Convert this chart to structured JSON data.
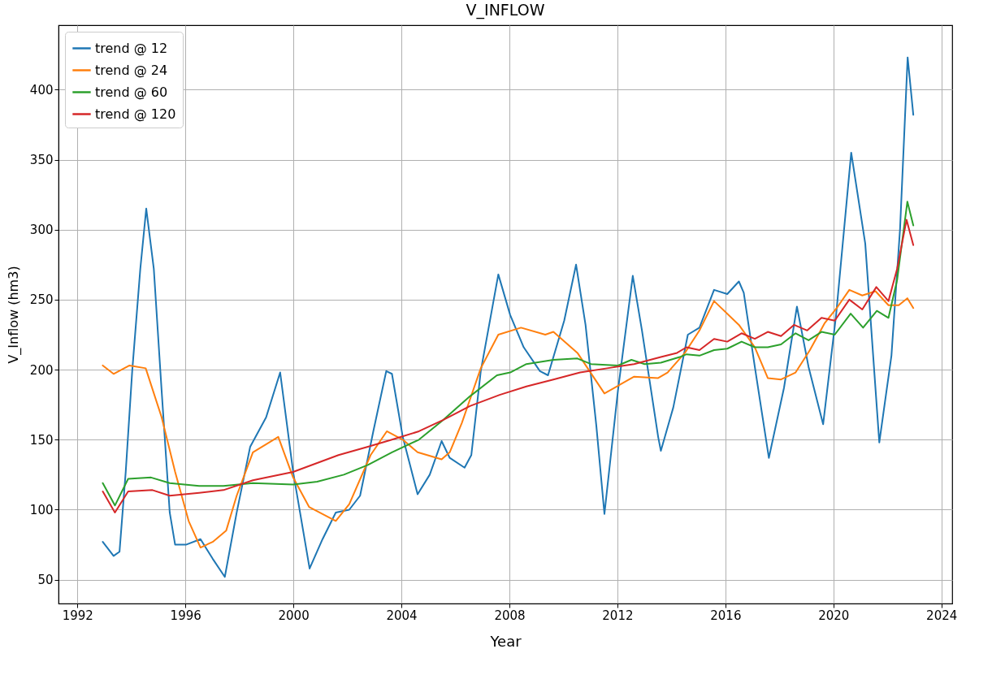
{
  "chart_data": {
    "type": "line",
    "title": "V_INFLOW",
    "xlabel": "Year",
    "ylabel": "V_Inflow (hm3)",
    "xlim": [
      1991.3,
      2024.4
    ],
    "xticks": [
      1992,
      1996,
      2000,
      2004,
      2008,
      2012,
      2016,
      2020,
      2024
    ],
    "ylim": [
      33,
      446
    ],
    "yticks": [
      50,
      100,
      150,
      200,
      250,
      300,
      350,
      400
    ],
    "grid": true,
    "legend": "top left",
    "series": [
      {
        "name": "trend @ 12",
        "color": "#1f77b4",
        "x": [
          1992.94,
          1993.34,
          1993.56,
          1993.79,
          1994.03,
          1994.33,
          1994.55,
          1994.83,
          1995.12,
          1995.42,
          1995.62,
          1996.02,
          1996.56,
          1997.01,
          1997.46,
          1997.9,
          1998.4,
          1998.99,
          1999.51,
          1999.99,
          2000.6,
          2001.08,
          2001.57,
          2002.07,
          2002.47,
          2002.96,
          2003.44,
          2003.65,
          2004.05,
          2004.6,
          2005.05,
          2005.49,
          2005.79,
          2006.34,
          2006.59,
          2006.94,
          2007.59,
          2008.03,
          2008.53,
          2009.13,
          2009.43,
          2010.03,
          2010.47,
          2010.82,
          2011.22,
          2011.52,
          2012.02,
          2012.57,
          2012.91,
          2013.51,
          2013.61,
          2014.07,
          2014.61,
          2015.04,
          2015.58,
          2016.07,
          2016.5,
          2016.68,
          2017.09,
          2017.61,
          2018.17,
          2018.65,
          2019.08,
          2019.62,
          2020.1,
          2020.66,
          2021.18,
          2021.7,
          2022.15,
          2022.47,
          2022.75,
          2022.96
        ],
        "values": [
          77,
          67,
          70,
          127,
          199,
          272,
          315,
          272,
          185,
          98,
          75,
          75,
          79,
          65,
          52,
          98,
          145,
          166,
          198,
          127,
          58,
          79,
          98,
          100,
          110,
          156,
          199,
          197,
          152,
          111,
          125,
          149,
          137,
          130,
          139,
          199,
          268,
          239,
          216,
          199,
          196,
          235,
          275,
          232,
          160,
          97,
          185,
          267,
          228,
          152,
          142,
          173,
          225,
          230,
          257,
          254,
          263,
          255,
          202,
          137,
          187,
          245,
          202,
          161,
          239,
          355,
          290,
          148,
          210,
          301,
          423,
          382
        ]
      },
      {
        "name": "trend @ 24",
        "color": "#ff7f0e",
        "x": [
          1992.94,
          1993.34,
          1993.93,
          1994.53,
          1995.12,
          1995.62,
          1996.12,
          1996.56,
          1997.01,
          1997.51,
          1997.9,
          1998.5,
          1999.44,
          1999.99,
          2000.58,
          2001.57,
          2002.07,
          2002.86,
          2003.46,
          2004.05,
          2004.6,
          2005.49,
          2005.79,
          2006.24,
          2006.94,
          2007.59,
          2008.43,
          2009.33,
          2009.63,
          2010.52,
          2011.52,
          2012.62,
          2013.51,
          2013.86,
          2014.5,
          2015.04,
          2015.58,
          2016.5,
          2017.09,
          2017.57,
          2018.06,
          2018.6,
          2019.13,
          2019.67,
          2020.16,
          2020.59,
          2021.07,
          2021.56,
          2022.04,
          2022.42,
          2022.74,
          2022.96
        ],
        "values": [
          203,
          197,
          203,
          201,
          166,
          127,
          92,
          73,
          77,
          85,
          110,
          141,
          152,
          123,
          102,
          92,
          104,
          139,
          156,
          150,
          141,
          136,
          141,
          162,
          201,
          225,
          230,
          225,
          227,
          212,
          183,
          195,
          194,
          198,
          212,
          228,
          249,
          232,
          216,
          194,
          193,
          198,
          214,
          233,
          245,
          257,
          253,
          256,
          246,
          246,
          251,
          244
        ]
      },
      {
        "name": "trend @ 60",
        "color": "#2ca02c",
        "x": [
          1992.94,
          1993.39,
          1993.88,
          1994.73,
          1995.42,
          1996.51,
          1997.41,
          1998.5,
          1999.99,
          2000.88,
          2001.87,
          2002.76,
          2003.65,
          2004.65,
          2005.54,
          2006.54,
          2007.54,
          2008.03,
          2008.63,
          2009.63,
          2010.52,
          2011.02,
          2012.02,
          2012.52,
          2013.01,
          2013.61,
          2014.31,
          2014.56,
          2015.04,
          2015.58,
          2016.07,
          2016.6,
          2017.09,
          2017.57,
          2018.06,
          2018.6,
          2019.08,
          2019.56,
          2020.05,
          2020.64,
          2021.1,
          2021.61,
          2022.04,
          2022.36,
          2022.74,
          2022.96
        ],
        "values": [
          119,
          103,
          122,
          123,
          119,
          117,
          117,
          119,
          118,
          120,
          125,
          132,
          141,
          150,
          164,
          181,
          196,
          198,
          204,
          207,
          208,
          204,
          203,
          207,
          204,
          205,
          209,
          211,
          210,
          214,
          215,
          220,
          216,
          216,
          218,
          226,
          221,
          227,
          225,
          240,
          230,
          242,
          237,
          264,
          320,
          303
        ]
      },
      {
        "name": "trend @ 120",
        "color": "#d62728",
        "x": [
          1992.94,
          1993.39,
          1993.88,
          1994.78,
          1995.42,
          1996.51,
          1997.41,
          1998.5,
          1999.99,
          2001.67,
          2002.76,
          2003.65,
          2004.65,
          2005.54,
          2006.54,
          2007.64,
          2008.63,
          2009.63,
          2010.62,
          2011.62,
          2012.62,
          2013.61,
          2014.21,
          2014.56,
          2015.04,
          2015.58,
          2016.07,
          2016.6,
          2017.09,
          2017.57,
          2018.06,
          2018.54,
          2019.03,
          2019.56,
          2020.05,
          2020.59,
          2021.07,
          2021.59,
          2022.04,
          2022.36,
          2022.71,
          2022.96
        ],
        "values": [
          113,
          98,
          113,
          114,
          110,
          112,
          114,
          121,
          127,
          139,
          145,
          150,
          156,
          164,
          174,
          182,
          188,
          193,
          198,
          201,
          204,
          209,
          212,
          216,
          214,
          222,
          220,
          226,
          222,
          227,
          224,
          232,
          228,
          237,
          235,
          250,
          243,
          259,
          249,
          272,
          307,
          289
        ]
      }
    ]
  }
}
